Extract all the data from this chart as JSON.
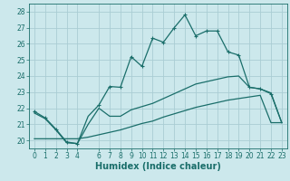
{
  "xlabel": "Humidex (Indice chaleur)",
  "bg_color": "#cce8ec",
  "grid_color": "#aacdd4",
  "line_color": "#1a6e6a",
  "xlim": [
    -0.5,
    23.5
  ],
  "ylim": [
    19.5,
    28.5
  ],
  "xticks": [
    0,
    1,
    2,
    3,
    4,
    6,
    7,
    8,
    9,
    10,
    11,
    12,
    13,
    14,
    15,
    16,
    17,
    18,
    19,
    20,
    21,
    22,
    23
  ],
  "yticks": [
    20,
    21,
    22,
    23,
    24,
    25,
    26,
    27,
    28
  ],
  "line1_x": [
    0,
    1,
    2,
    3,
    4,
    5,
    6,
    7,
    8,
    9,
    10,
    11,
    12,
    13,
    14,
    15,
    16,
    17,
    18,
    19,
    20,
    21,
    22,
    23
  ],
  "line1_y": [
    21.8,
    21.4,
    20.7,
    19.9,
    19.8,
    21.5,
    22.2,
    23.35,
    23.3,
    25.2,
    24.6,
    26.35,
    26.1,
    27.0,
    27.8,
    26.5,
    26.8,
    26.8,
    25.5,
    25.3,
    23.3,
    23.2,
    22.9,
    21.1
  ],
  "line2_x": [
    0,
    1,
    2,
    3,
    4,
    5,
    6,
    7,
    8,
    9,
    10,
    11,
    12,
    13,
    14,
    15,
    16,
    17,
    18,
    19,
    20,
    21,
    22,
    23
  ],
  "line2_y": [
    21.7,
    21.35,
    20.65,
    19.85,
    19.8,
    21.0,
    22.0,
    21.5,
    21.5,
    21.9,
    22.1,
    22.3,
    22.6,
    22.9,
    23.2,
    23.5,
    23.65,
    23.8,
    23.95,
    24.0,
    23.3,
    23.2,
    22.95,
    21.1
  ],
  "line3_x": [
    0,
    1,
    2,
    3,
    4,
    5,
    6,
    7,
    8,
    9,
    10,
    11,
    12,
    13,
    14,
    15,
    16,
    17,
    18,
    19,
    20,
    21,
    22,
    23
  ],
  "line3_y": [
    20.1,
    20.1,
    20.1,
    20.1,
    20.1,
    20.2,
    20.35,
    20.5,
    20.65,
    20.85,
    21.05,
    21.2,
    21.45,
    21.65,
    21.85,
    22.05,
    22.2,
    22.35,
    22.5,
    22.6,
    22.7,
    22.8,
    21.1,
    21.1
  ],
  "markers_x": [
    0,
    1,
    2,
    3,
    4,
    6,
    7,
    8,
    9,
    10,
    11,
    12,
    13,
    14,
    15,
    16,
    17,
    18,
    19,
    20,
    21,
    22
  ],
  "markers_y": [
    21.8,
    21.4,
    20.7,
    19.9,
    19.8,
    22.2,
    23.35,
    23.3,
    25.2,
    24.6,
    26.35,
    26.1,
    27.0,
    27.8,
    26.5,
    26.8,
    26.8,
    25.5,
    25.3,
    23.3,
    23.2,
    22.9
  ],
  "fontsize_label": 7,
  "tick_fontsize": 5.5
}
